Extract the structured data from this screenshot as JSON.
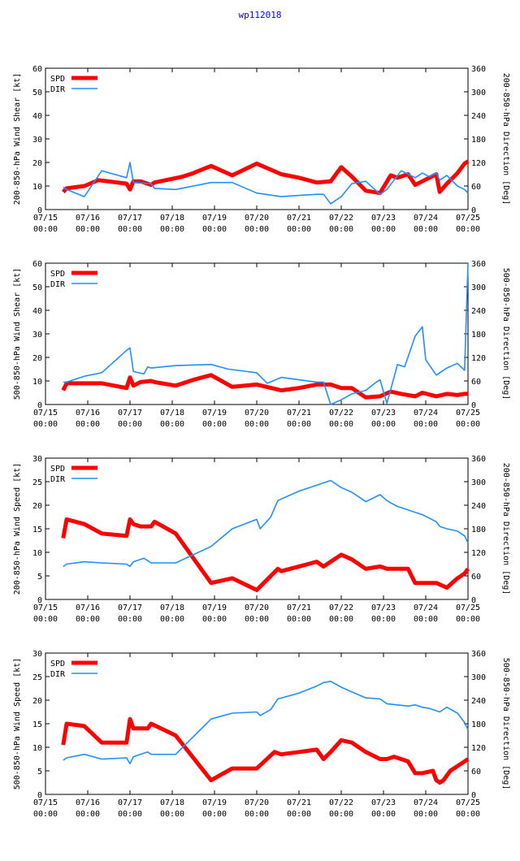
{
  "title": "wp112018",
  "colors": {
    "spd": "#ff0000",
    "dir": "#1e90ff",
    "axis": "#000000"
  },
  "chart_data": [
    {
      "type": "line",
      "title": "",
      "xlabel": "",
      "ylabel": "200-850-hPa Wind Shear [kt]",
      "y2label": "200-850-hPa Direction [Deg]",
      "xticks": [
        [
          "07/15",
          "00:00"
        ],
        [
          "07/16",
          "00:00"
        ],
        [
          "07/17",
          "00:00"
        ],
        [
          "07/18",
          "00:00"
        ],
        [
          "07/19",
          "00:00"
        ],
        [
          "07/20",
          "00:00"
        ],
        [
          "07/21",
          "00:00"
        ],
        [
          "07/22",
          "00:00"
        ],
        [
          "07/23",
          "00:00"
        ],
        [
          "07/24",
          "00:00"
        ],
        [
          "07/25",
          "00:00"
        ]
      ],
      "xlim": [
        0,
        10
      ],
      "ylim": [
        0,
        60
      ],
      "yticks": [
        0,
        10,
        20,
        30,
        40,
        50,
        60
      ],
      "y2lim": [
        0,
        360
      ],
      "y2ticks": [
        0,
        60,
        120,
        180,
        240,
        300,
        360
      ],
      "legend": [
        "SPD",
        "DIR"
      ],
      "series": [
        {
          "name": "SPD",
          "axis": "left",
          "x": [
            0.42,
            0.5,
            0.92,
            1.25,
            1.92,
            2.0,
            2.08,
            2.25,
            2.5,
            2.58,
            3.25,
            3.5,
            3.92,
            4.42,
            5.0,
            5.58,
            6.0,
            6.42,
            6.75,
            7.0,
            7.25,
            7.58,
            7.92,
            8.17,
            8.33,
            8.58,
            8.75,
            8.92,
            9.25,
            9.33,
            9.5,
            9.75,
            9.92,
            10.0
          ],
          "y": [
            7.5,
            9.0,
            10.0,
            12.5,
            11.0,
            8.5,
            12.0,
            12.0,
            10.5,
            11.5,
            14.0,
            15.5,
            18.5,
            14.5,
            19.5,
            15.0,
            13.5,
            11.5,
            12.0,
            18.0,
            14.0,
            8.0,
            7.0,
            14.5,
            13.5,
            15.0,
            10.5,
            12.0,
            15.0,
            7.5,
            11.0,
            15.5,
            19.5,
            20.5
          ]
        },
        {
          "name": "DIR",
          "axis": "right",
          "x": [
            0.42,
            0.5,
            0.92,
            1.33,
            1.92,
            2.0,
            2.08,
            2.5,
            2.58,
            3.08,
            3.92,
            4.42,
            5.0,
            5.58,
            6.0,
            6.42,
            6.58,
            6.75,
            7.0,
            7.25,
            7.58,
            7.92,
            8.08,
            8.42,
            8.58,
            8.75,
            8.92,
            9.08,
            9.25,
            9.33,
            9.5,
            9.75,
            9.92,
            10.0
          ],
          "y": [
            57,
            51,
            33,
            99,
            81,
            120,
            69,
            66,
            54,
            51,
            69,
            69,
            42,
            33,
            36,
            39,
            39,
            15,
            33,
            66,
            72,
            39,
            51,
            99,
            90,
            81,
            93,
            84,
            93,
            75,
            87,
            60,
            51,
            42
          ]
        }
      ]
    },
    {
      "type": "line",
      "title": "",
      "xlabel": "",
      "ylabel": "500-850-hPa Wind Shear [kt]",
      "y2label": "500-850-hPa Direction [Deg]",
      "xticks": [
        [
          "07/15",
          "00:00"
        ],
        [
          "07/16",
          "00:00"
        ],
        [
          "07/17",
          "00:00"
        ],
        [
          "07/18",
          "00:00"
        ],
        [
          "07/19",
          "00:00"
        ],
        [
          "07/20",
          "00:00"
        ],
        [
          "07/21",
          "00:00"
        ],
        [
          "07/22",
          "00:00"
        ],
        [
          "07/23",
          "00:00"
        ],
        [
          "07/24",
          "00:00"
        ],
        [
          "07/25",
          "00:00"
        ]
      ],
      "xlim": [
        0,
        10
      ],
      "ylim": [
        0,
        60
      ],
      "yticks": [
        0,
        10,
        20,
        30,
        40,
        50,
        60
      ],
      "y2lim": [
        0,
        360
      ],
      "y2ticks": [
        0,
        60,
        120,
        180,
        240,
        300,
        360
      ],
      "legend": [
        "SPD",
        "DIR"
      ],
      "series": [
        {
          "name": "SPD",
          "axis": "left",
          "x": [
            0.42,
            0.5,
            0.92,
            1.33,
            1.92,
            2.0,
            2.08,
            2.25,
            2.5,
            2.58,
            3.08,
            3.5,
            3.92,
            4.42,
            5.0,
            5.58,
            6.0,
            6.42,
            6.75,
            7.0,
            7.25,
            7.58,
            7.92,
            8.17,
            8.42,
            8.58,
            8.75,
            8.92,
            9.25,
            9.5,
            9.75,
            9.92,
            10.0
          ],
          "y": [
            6.0,
            9.0,
            9.0,
            9.0,
            7.0,
            11.5,
            8.0,
            9.5,
            10.0,
            9.5,
            8.0,
            10.5,
            12.5,
            7.5,
            8.5,
            6.0,
            7.0,
            8.5,
            8.5,
            7.0,
            7.0,
            3.0,
            3.5,
            5.5,
            4.5,
            4.0,
            3.5,
            5.0,
            3.5,
            4.5,
            4.0,
            4.5,
            4.5
          ]
        },
        {
          "name": "DIR",
          "axis": "right",
          "x": [
            0.42,
            0.5,
            0.92,
            1.33,
            1.92,
            2.0,
            2.08,
            2.33,
            2.42,
            2.5,
            3.08,
            3.92,
            4.33,
            5.0,
            5.25,
            5.58,
            6.0,
            6.42,
            6.58,
            6.75,
            7.0,
            7.25,
            7.58,
            7.83,
            7.92,
            8.08,
            8.33,
            8.5,
            8.75,
            8.92,
            9.0,
            9.25,
            9.5,
            9.75,
            9.92,
            10.0
          ],
          "y": [
            57,
            57,
            72,
            81,
            138,
            144,
            84,
            78,
            96,
            93,
            99,
            102,
            90,
            81,
            54,
            69,
            63,
            57,
            57,
            0,
            12,
            27,
            36,
            57,
            63,
            3,
            102,
            96,
            174,
            198,
            114,
            75,
            93,
            105,
            87,
            360
          ]
        }
      ]
    },
    {
      "type": "line",
      "title": "",
      "xlabel": "",
      "ylabel": "200-850-hPa Wind Speed [kt]",
      "y2label": "200-850-hPa Direction [Deg]",
      "xticks": [
        [
          "07/15",
          "00:00"
        ],
        [
          "07/16",
          "00:00"
        ],
        [
          "07/17",
          "00:00"
        ],
        [
          "07/18",
          "00:00"
        ],
        [
          "07/19",
          "00:00"
        ],
        [
          "07/20",
          "00:00"
        ],
        [
          "07/21",
          "00:00"
        ],
        [
          "07/22",
          "00:00"
        ],
        [
          "07/23",
          "00:00"
        ],
        [
          "07/24",
          "00:00"
        ],
        [
          "07/25",
          "00:00"
        ]
      ],
      "xlim": [
        0,
        10
      ],
      "ylim": [
        0,
        30
      ],
      "yticks": [
        0,
        5,
        10,
        15,
        20,
        25,
        30
      ],
      "y2lim": [
        0,
        360
      ],
      "y2ticks": [
        0,
        60,
        120,
        180,
        240,
        300,
        360
      ],
      "legend": [
        "SPD",
        "DIR"
      ],
      "series": [
        {
          "name": "SPD",
          "axis": "left",
          "x": [
            0.42,
            0.5,
            0.92,
            1.33,
            1.92,
            2.0,
            2.08,
            2.25,
            2.5,
            2.58,
            3.08,
            3.92,
            4.42,
            5.0,
            5.5,
            5.58,
            6.0,
            6.42,
            6.58,
            6.75,
            7.0,
            7.25,
            7.58,
            7.92,
            8.08,
            8.33,
            8.58,
            8.75,
            8.92,
            9.25,
            9.5,
            9.75,
            9.92,
            10.0
          ],
          "y": [
            13.0,
            17.0,
            16.0,
            14.0,
            13.5,
            17.0,
            16.0,
            15.5,
            15.5,
            16.5,
            14.0,
            3.5,
            4.5,
            2.0,
            6.5,
            6.0,
            7.0,
            8.0,
            7.0,
            8.0,
            9.5,
            8.5,
            6.5,
            7.0,
            6.5,
            6.5,
            6.5,
            3.5,
            3.5,
            3.5,
            2.5,
            4.5,
            5.5,
            6.5
          ]
        },
        {
          "name": "DIR",
          "axis": "right",
          "x": [
            0.42,
            0.5,
            0.92,
            1.33,
            1.92,
            2.0,
            2.08,
            2.33,
            2.5,
            3.08,
            3.92,
            4.42,
            5.0,
            5.08,
            5.33,
            5.5,
            6.0,
            6.42,
            6.58,
            6.75,
            7.0,
            7.25,
            7.58,
            7.92,
            8.08,
            8.17,
            8.33,
            8.58,
            8.75,
            8.92,
            9.25,
            9.33,
            9.5,
            9.75,
            9.92,
            10.0
          ],
          "y": [
            84,
            90,
            96,
            93,
            90,
            84,
            96,
            105,
            93,
            93,
            135,
            180,
            204,
            180,
            210,
            252,
            276,
            291,
            297,
            303,
            285,
            273,
            249,
            267,
            252,
            246,
            237,
            228,
            222,
            216,
            198,
            186,
            180,
            174,
            162,
            144
          ]
        }
      ]
    },
    {
      "type": "line",
      "title": "",
      "xlabel": "",
      "ylabel": "500-850-hPa Wind Speed [kt]",
      "y2label": "500-850-hPa Direction [Deg]",
      "xticks": [
        [
          "07/15",
          "00:00"
        ],
        [
          "07/16",
          "00:00"
        ],
        [
          "07/17",
          "00:00"
        ],
        [
          "07/18",
          "00:00"
        ],
        [
          "07/19",
          "00:00"
        ],
        [
          "07/20",
          "00:00"
        ],
        [
          "07/21",
          "00:00"
        ],
        [
          "07/22",
          "00:00"
        ],
        [
          "07/23",
          "00:00"
        ],
        [
          "07/24",
          "00:00"
        ],
        [
          "07/25",
          "00:00"
        ]
      ],
      "xlim": [
        0,
        10
      ],
      "ylim": [
        0,
        30
      ],
      "yticks": [
        0,
        5,
        10,
        15,
        20,
        25,
        30
      ],
      "y2lim": [
        0,
        360
      ],
      "y2ticks": [
        0,
        60,
        120,
        180,
        240,
        300,
        360
      ],
      "legend": [
        "SPD",
        "DIR"
      ],
      "series": [
        {
          "name": "SPD",
          "axis": "left",
          "x": [
            0.42,
            0.5,
            0.92,
            1.33,
            1.92,
            2.0,
            2.08,
            2.42,
            2.5,
            3.08,
            3.92,
            4.42,
            5.0,
            5.42,
            5.58,
            6.0,
            6.42,
            6.58,
            6.75,
            7.0,
            7.25,
            7.58,
            7.92,
            8.08,
            8.25,
            8.42,
            8.58,
            8.75,
            8.92,
            9.17,
            9.25,
            9.33,
            9.42,
            9.58,
            9.75,
            9.92,
            10.0
          ],
          "y": [
            10.5,
            15.0,
            14.5,
            11.0,
            11.0,
            16.0,
            14.0,
            14.0,
            15.0,
            12.5,
            3.0,
            5.5,
            5.5,
            9.0,
            8.5,
            9.0,
            9.5,
            7.5,
            9.0,
            11.5,
            11.0,
            9.0,
            7.5,
            7.5,
            8.0,
            7.5,
            7.0,
            4.5,
            4.5,
            5.0,
            3.0,
            2.5,
            3.0,
            5.0,
            6.0,
            7.0,
            7.5
          ]
        },
        {
          "name": "DIR",
          "axis": "right",
          "x": [
            0.42,
            0.5,
            0.92,
            1.33,
            1.92,
            2.0,
            2.08,
            2.42,
            2.5,
            3.08,
            3.92,
            4.42,
            5.0,
            5.08,
            5.33,
            5.5,
            6.0,
            6.42,
            6.58,
            6.75,
            7.0,
            7.25,
            7.58,
            7.92,
            8.08,
            8.33,
            8.58,
            8.75,
            8.92,
            9.08,
            9.25,
            9.33,
            9.5,
            9.75,
            9.92,
            10.0
          ],
          "y": [
            87,
            93,
            102,
            90,
            93,
            78,
            96,
            108,
            102,
            102,
            192,
            207,
            210,
            201,
            216,
            243,
            258,
            276,
            285,
            288,
            273,
            261,
            246,
            243,
            231,
            228,
            225,
            228,
            222,
            219,
            213,
            210,
            222,
            207,
            183,
            165
          ]
        }
      ]
    }
  ]
}
